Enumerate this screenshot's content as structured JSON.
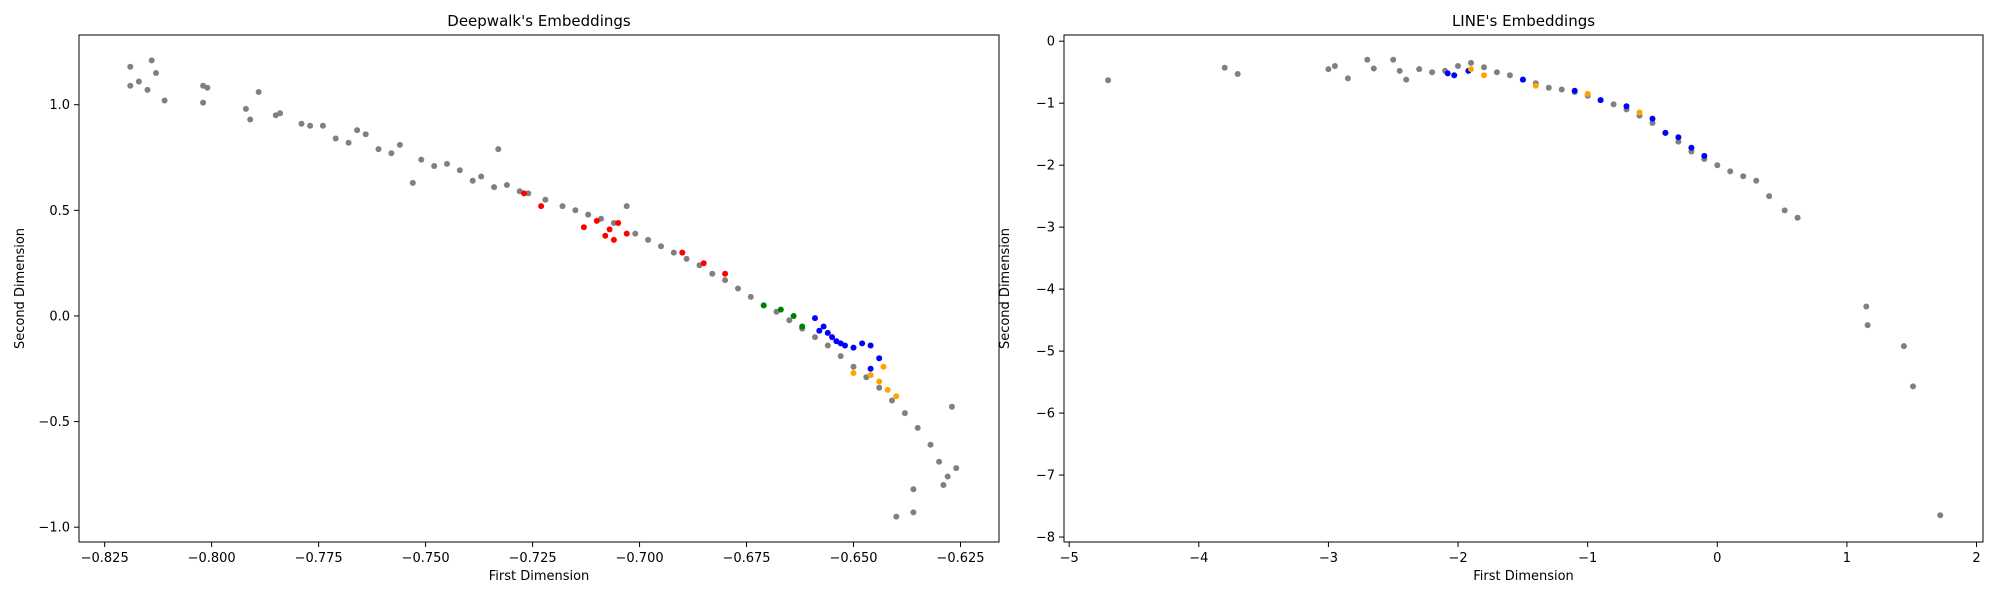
{
  "chart_data": [
    {
      "type": "scatter",
      "title": "Deepwalk's Embeddings",
      "xlabel": "First Dimension",
      "ylabel": "Second Dimension",
      "xlim": [
        -0.831,
        -0.616
      ],
      "ylim": [
        -1.07,
        1.33
      ],
      "xticks": [
        -0.825,
        -0.8,
        -0.775,
        -0.75,
        -0.725,
        -0.7,
        -0.675,
        -0.65,
        -0.625
      ],
      "xtick_labels": [
        "−0.825",
        "−0.800",
        "−0.775",
        "−0.750",
        "−0.725",
        "−0.700",
        "−0.675",
        "−0.650",
        "−0.625"
      ],
      "yticks": [
        -1.0,
        -0.5,
        0.0,
        0.5,
        1.0
      ],
      "ytick_labels": [
        "−1.0",
        "−0.5",
        "0.0",
        "0.5",
        "1.0"
      ],
      "grid": false,
      "marker_color_gray": "#808080",
      "series": [
        {
          "color": "#808080",
          "points": [
            [
              -0.819,
              1.18
            ],
            [
              -0.819,
              1.09
            ],
            [
              -0.817,
              1.11
            ],
            [
              -0.815,
              1.07
            ],
            [
              -0.814,
              1.21
            ],
            [
              -0.813,
              1.15
            ],
            [
              -0.811,
              1.02
            ],
            [
              -0.802,
              1.01
            ],
            [
              -0.802,
              1.09
            ],
            [
              -0.801,
              1.08
            ],
            [
              -0.792,
              0.98
            ],
            [
              -0.791,
              0.93
            ],
            [
              -0.789,
              1.06
            ],
            [
              -0.785,
              0.95
            ],
            [
              -0.784,
              0.96
            ],
            [
              -0.779,
              0.91
            ],
            [
              -0.777,
              0.9
            ],
            [
              -0.774,
              0.9
            ],
            [
              -0.771,
              0.84
            ],
            [
              -0.768,
              0.82
            ],
            [
              -0.766,
              0.88
            ],
            [
              -0.764,
              0.86
            ],
            [
              -0.761,
              0.79
            ],
            [
              -0.758,
              0.77
            ],
            [
              -0.756,
              0.81
            ],
            [
              -0.753,
              0.63
            ],
            [
              -0.751,
              0.74
            ],
            [
              -0.748,
              0.71
            ],
            [
              -0.745,
              0.72
            ],
            [
              -0.742,
              0.69
            ],
            [
              -0.739,
              0.64
            ],
            [
              -0.737,
              0.66
            ],
            [
              -0.734,
              0.61
            ],
            [
              -0.733,
              0.79
            ],
            [
              -0.731,
              0.62
            ],
            [
              -0.728,
              0.59
            ],
            [
              -0.726,
              0.58
            ],
            [
              -0.722,
              0.55
            ],
            [
              -0.718,
              0.52
            ],
            [
              -0.715,
              0.5
            ],
            [
              -0.712,
              0.48
            ],
            [
              -0.709,
              0.46
            ],
            [
              -0.706,
              0.44
            ],
            [
              -0.703,
              0.52
            ],
            [
              -0.701,
              0.39
            ],
            [
              -0.698,
              0.36
            ],
            [
              -0.695,
              0.33
            ],
            [
              -0.692,
              0.3
            ],
            [
              -0.689,
              0.27
            ],
            [
              -0.686,
              0.24
            ],
            [
              -0.683,
              0.2
            ],
            [
              -0.68,
              0.17
            ],
            [
              -0.677,
              0.13
            ],
            [
              -0.674,
              0.09
            ],
            [
              -0.671,
              0.05
            ],
            [
              -0.668,
              0.02
            ],
            [
              -0.665,
              -0.02
            ],
            [
              -0.662,
              -0.06
            ],
            [
              -0.659,
              -0.1
            ],
            [
              -0.656,
              -0.14
            ],
            [
              -0.653,
              -0.19
            ],
            [
              -0.65,
              -0.24
            ],
            [
              -0.647,
              -0.29
            ],
            [
              -0.644,
              -0.34
            ],
            [
              -0.641,
              -0.4
            ],
            [
              -0.638,
              -0.46
            ],
            [
              -0.635,
              -0.53
            ],
            [
              -0.632,
              -0.61
            ],
            [
              -0.63,
              -0.69
            ],
            [
              -0.628,
              -0.76
            ],
            [
              -0.636,
              -0.82
            ],
            [
              -0.64,
              -0.95
            ],
            [
              -0.636,
              -0.93
            ],
            [
              -0.627,
              -0.43
            ],
            [
              -0.626,
              -0.72
            ],
            [
              -0.629,
              -0.8
            ]
          ]
        },
        {
          "color": "#0000ff",
          "points": [
            [
              -0.659,
              -0.01
            ],
            [
              -0.657,
              -0.05
            ],
            [
              -0.656,
              -0.08
            ],
            [
              -0.655,
              -0.1
            ],
            [
              -0.654,
              -0.12
            ],
            [
              -0.652,
              -0.14
            ],
            [
              -0.65,
              -0.15
            ],
            [
              -0.648,
              -0.13
            ],
            [
              -0.646,
              -0.14
            ],
            [
              -0.644,
              -0.2
            ],
            [
              -0.646,
              -0.25
            ],
            [
              -0.653,
              -0.13
            ],
            [
              -0.658,
              -0.07
            ]
          ]
        },
        {
          "color": "#ff0000",
          "points": [
            [
              -0.727,
              0.58
            ],
            [
              -0.723,
              0.52
            ],
            [
              -0.713,
              0.42
            ],
            [
              -0.71,
              0.45
            ],
            [
              -0.708,
              0.38
            ],
            [
              -0.707,
              0.41
            ],
            [
              -0.706,
              0.36
            ],
            [
              -0.705,
              0.44
            ],
            [
              -0.703,
              0.39
            ],
            [
              -0.69,
              0.3
            ],
            [
              -0.685,
              0.25
            ],
            [
              -0.68,
              0.2
            ]
          ]
        },
        {
          "color": "#ffa500",
          "points": [
            [
              -0.65,
              -0.27
            ],
            [
              -0.646,
              -0.28
            ],
            [
              -0.644,
              -0.31
            ],
            [
              -0.642,
              -0.35
            ],
            [
              -0.64,
              -0.38
            ],
            [
              -0.643,
              -0.24
            ]
          ]
        },
        {
          "color": "#008000",
          "points": [
            [
              -0.671,
              0.05
            ],
            [
              -0.667,
              0.03
            ],
            [
              -0.664,
              0.0
            ],
            [
              -0.662,
              -0.05
            ]
          ]
        }
      ]
    },
    {
      "type": "scatter",
      "title": "LINE's Embeddings",
      "xlabel": "First Dimension",
      "ylabel": "Second Dimension",
      "xlim": [
        -5.04,
        2.05
      ],
      "ylim": [
        -8.08,
        0.1
      ],
      "xticks": [
        -5,
        -4,
        -3,
        -2,
        -1,
        0,
        1,
        2
      ],
      "xtick_labels": [
        "−5",
        "−4",
        "−3",
        "−2",
        "−1",
        "0",
        "1",
        "2"
      ],
      "yticks": [
        -8,
        -7,
        -6,
        -5,
        -4,
        -3,
        -2,
        -1,
        0
      ],
      "ytick_labels": [
        "−8",
        "−7",
        "−6",
        "−5",
        "−4",
        "−3",
        "−2",
        "−1",
        "0"
      ],
      "grid": false,
      "series": [
        {
          "color": "#808080",
          "points": [
            [
              -4.7,
              -0.63
            ],
            [
              -3.8,
              -0.43
            ],
            [
              -3.7,
              -0.53
            ],
            [
              -3.0,
              -0.45
            ],
            [
              -2.95,
              -0.4
            ],
            [
              -2.85,
              -0.6
            ],
            [
              -2.7,
              -0.3
            ],
            [
              -2.65,
              -0.44
            ],
            [
              -2.5,
              -0.3
            ],
            [
              -2.45,
              -0.48
            ],
            [
              -2.4,
              -0.62
            ],
            [
              -2.3,
              -0.45
            ],
            [
              -2.2,
              -0.5
            ],
            [
              -2.1,
              -0.48
            ],
            [
              -2.0,
              -0.4
            ],
            [
              -1.9,
              -0.35
            ],
            [
              -1.8,
              -0.42
            ],
            [
              -1.7,
              -0.5
            ],
            [
              -1.6,
              -0.55
            ],
            [
              -1.5,
              -0.62
            ],
            [
              -1.4,
              -0.68
            ],
            [
              -1.3,
              -0.75
            ],
            [
              -1.2,
              -0.78
            ],
            [
              -1.1,
              -0.82
            ],
            [
              -1.0,
              -0.88
            ],
            [
              -0.9,
              -0.95
            ],
            [
              -0.8,
              -1.02
            ],
            [
              -0.7,
              -1.1
            ],
            [
              -0.6,
              -1.2
            ],
            [
              -0.5,
              -1.32
            ],
            [
              -0.4,
              -1.48
            ],
            [
              -0.3,
              -1.62
            ],
            [
              -0.2,
              -1.78
            ],
            [
              -0.1,
              -1.9
            ],
            [
              0.0,
              -2.0
            ],
            [
              0.1,
              -2.1
            ],
            [
              0.2,
              -2.18
            ],
            [
              0.3,
              -2.25
            ],
            [
              0.4,
              -2.5
            ],
            [
              0.52,
              -2.73
            ],
            [
              0.62,
              -2.85
            ],
            [
              1.15,
              -4.28
            ],
            [
              1.16,
              -4.58
            ],
            [
              1.44,
              -4.92
            ],
            [
              1.51,
              -5.57
            ],
            [
              1.72,
              -7.65
            ]
          ]
        },
        {
          "color": "#0000ff",
          "points": [
            [
              -2.08,
              -0.52
            ],
            [
              -2.03,
              -0.55
            ],
            [
              -1.92,
              -0.48
            ],
            [
              -1.5,
              -0.62
            ],
            [
              -1.1,
              -0.8
            ],
            [
              -0.9,
              -0.95
            ],
            [
              -0.7,
              -1.05
            ],
            [
              -0.5,
              -1.25
            ],
            [
              -0.4,
              -1.48
            ],
            [
              -0.2,
              -1.72
            ],
            [
              -0.1,
              -1.85
            ],
            [
              -0.3,
              -1.55
            ]
          ]
        },
        {
          "color": "#ffa500",
          "points": [
            [
              -1.9,
              -0.45
            ],
            [
              -1.8,
              -0.55
            ],
            [
              -1.4,
              -0.72
            ],
            [
              -1.0,
              -0.85
            ],
            [
              -0.6,
              -1.15
            ]
          ]
        }
      ]
    }
  ]
}
